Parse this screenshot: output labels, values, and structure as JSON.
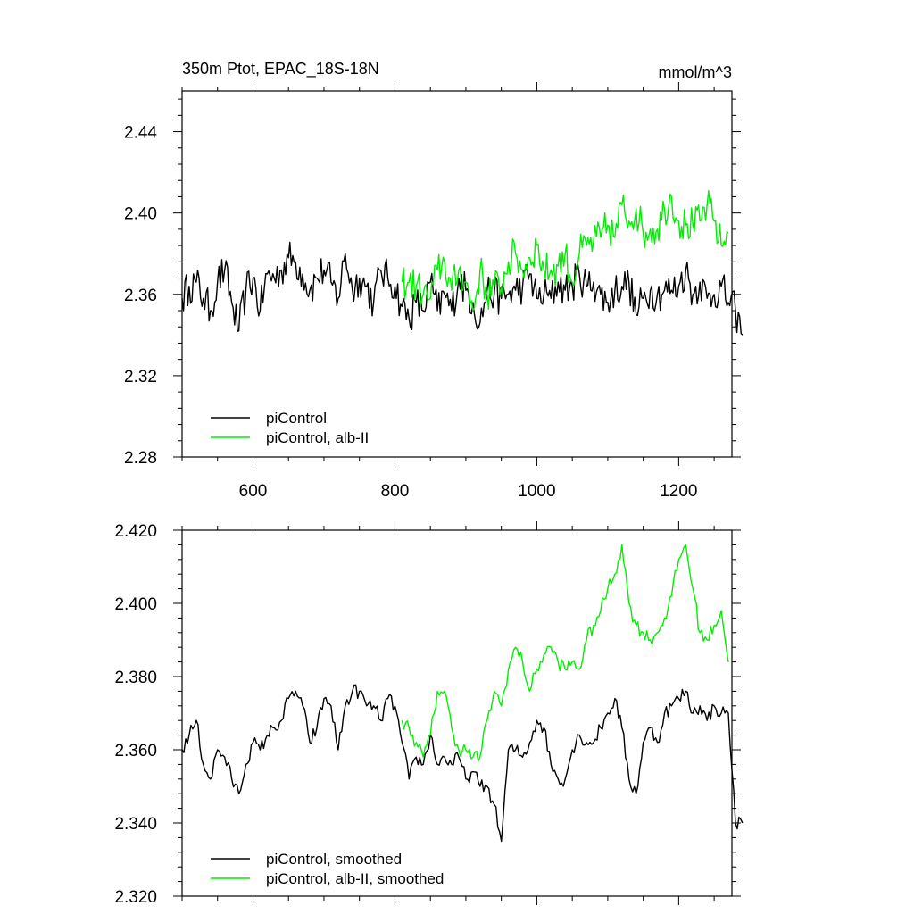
{
  "chart_data": [
    {
      "type": "line",
      "title": "350m Ptot, EPAC_18S-18N",
      "units": "mmol/m^3",
      "xlim": [
        500,
        1275
      ],
      "ylim": [
        2.28,
        2.46
      ],
      "x_ticks": [
        600,
        800,
        1000,
        1200
      ],
      "x_tick_labels": [
        "600",
        "800",
        "1000",
        "1200"
      ],
      "y_ticks": [
        2.28,
        2.32,
        2.36,
        2.4,
        2.44
      ],
      "y_tick_labels": [
        "2.28",
        "2.32",
        "2.36",
        "2.40",
        "2.44"
      ],
      "legend": [
        "piControl",
        "piControl, alb-II"
      ],
      "series": [
        {
          "name": "piControl",
          "color": "#000000",
          "x_start": 500,
          "x_step": 10,
          "values": [
            2.358,
            2.364,
            2.366,
            2.358,
            2.352,
            2.366,
            2.372,
            2.356,
            2.342,
            2.362,
            2.368,
            2.352,
            2.37,
            2.368,
            2.372,
            2.378,
            2.376,
            2.37,
            2.362,
            2.368,
            2.372,
            2.366,
            2.358,
            2.38,
            2.362,
            2.368,
            2.364,
            2.356,
            2.372,
            2.368,
            2.364,
            2.354,
            2.348,
            2.356,
            2.352,
            2.366,
            2.352,
            2.36,
            2.352,
            2.368,
            2.362,
            2.356,
            2.346,
            2.362,
            2.36,
            2.358,
            2.36,
            2.362,
            2.364,
            2.37,
            2.358,
            2.36,
            2.358,
            2.366,
            2.362,
            2.364,
            2.37,
            2.364,
            2.366,
            2.36,
            2.356,
            2.362,
            2.364,
            2.366,
            2.35,
            2.358,
            2.362,
            2.36,
            2.362,
            2.362,
            2.364,
            2.372,
            2.36,
            2.366,
            2.358,
            2.36,
            2.364,
            2.356,
            2.352,
            2.34
          ]
        },
        {
          "name": "piControl, alb-II",
          "color": "#00ee00",
          "x_start": 810,
          "x_step": 10,
          "values": [
            2.366,
            2.366,
            2.364,
            2.36,
            2.358,
            2.372,
            2.376,
            2.362,
            2.372,
            2.366,
            2.352,
            2.372,
            2.36,
            2.364,
            2.364,
            2.376,
            2.38,
            2.372,
            2.378,
            2.384,
            2.372,
            2.372,
            2.374,
            2.38,
            2.366,
            2.38,
            2.384,
            2.386,
            2.388,
            2.394,
            2.388,
            2.404,
            2.396,
            2.402,
            2.39,
            2.392,
            2.392,
            2.402,
            2.408,
            2.396,
            2.394,
            2.394,
            2.396,
            2.404,
            2.396,
            2.384,
            2.39
          ]
        }
      ]
    },
    {
      "type": "line",
      "xlim": [
        500,
        1275
      ],
      "ylim": [
        2.32,
        2.42
      ],
      "x_ticks": [
        600,
        800,
        1000,
        1200
      ],
      "y_ticks": [
        2.32,
        2.34,
        2.36,
        2.38,
        2.4,
        2.42
      ],
      "y_tick_labels": [
        "2.320",
        "2.340",
        "2.360",
        "2.380",
        "2.400",
        "2.420"
      ],
      "legend": [
        "piControl, smoothed",
        "piControl, alb-II, smoothed"
      ],
      "series": [
        {
          "name": "piControl, smoothed",
          "color": "#000000",
          "x_start": 500,
          "x_step": 10,
          "values": [
            2.36,
            2.364,
            2.368,
            2.356,
            2.352,
            2.36,
            2.358,
            2.352,
            2.348,
            2.356,
            2.362,
            2.36,
            2.364,
            2.366,
            2.368,
            2.374,
            2.376,
            2.372,
            2.362,
            2.366,
            2.374,
            2.372,
            2.36,
            2.372,
            2.376,
            2.376,
            2.372,
            2.372,
            2.368,
            2.374,
            2.372,
            2.362,
            2.352,
            2.358,
            2.356,
            2.364,
            2.356,
            2.358,
            2.356,
            2.358,
            2.352,
            2.354,
            2.35,
            2.35,
            2.345,
            2.335,
            2.36,
            2.36,
            2.358,
            2.362,
            2.368,
            2.366,
            2.356,
            2.352,
            2.352,
            2.36,
            2.364,
            2.362,
            2.362,
            2.366,
            2.37,
            2.374,
            2.366,
            2.352,
            2.348,
            2.362,
            2.366,
            2.362,
            2.37,
            2.372,
            2.374,
            2.376,
            2.37,
            2.372,
            2.368,
            2.372,
            2.37,
            2.37,
            2.34,
            2.34
          ]
        },
        {
          "name": "piControl, alb-II, smoothed",
          "color": "#00ee00",
          "x_start": 810,
          "x_step": 10,
          "values": [
            2.368,
            2.366,
            2.362,
            2.358,
            2.364,
            2.376,
            2.376,
            2.366,
            2.36,
            2.36,
            2.358,
            2.358,
            2.368,
            2.376,
            2.372,
            2.382,
            2.388,
            2.384,
            2.376,
            2.382,
            2.386,
            2.388,
            2.384,
            2.382,
            2.384,
            2.382,
            2.39,
            2.394,
            2.398,
            2.404,
            2.408,
            2.416,
            2.4,
            2.394,
            2.392,
            2.39,
            2.392,
            2.396,
            2.402,
            2.412,
            2.416,
            2.404,
            2.392,
            2.39,
            2.394,
            2.398,
            2.384
          ]
        }
      ]
    }
  ]
}
